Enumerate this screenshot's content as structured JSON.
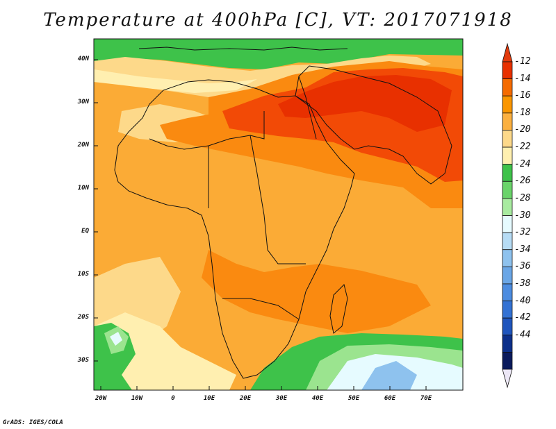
{
  "title": "Temperature at 400hPa [C], VT: 2017071918",
  "credit": "GrADS: IGES/COLA",
  "map": {
    "lat_ticks": [
      "40N",
      "30N",
      "20N",
      "10N",
      "EQ",
      "10S",
      "20S",
      "30S"
    ],
    "lon_ticks": [
      "20W",
      "10W",
      "0",
      "10E",
      "20E",
      "30E",
      "40E",
      "50E",
      "60E",
      "70E"
    ]
  },
  "colorbar": {
    "levels": [
      "-12",
      "-14",
      "-16",
      "-18",
      "-20",
      "-22",
      "-24",
      "-26",
      "-28",
      "-30",
      "-32",
      "-34",
      "-36",
      "-38",
      "-40",
      "-42",
      "-44"
    ],
    "colors": [
      "#e83000",
      "#f56b00",
      "#fa9600",
      "#fbb040",
      "#fdd98a",
      "#fff0b0",
      "#3ec24a",
      "#6ad46a",
      "#a8eba0",
      "#e6fbff",
      "#b6dcf5",
      "#8ec2ee",
      "#6aa6e6",
      "#4c8ce0",
      "#3372d4",
      "#1f55bd",
      "#0c2f8a",
      "#0a1a5c"
    ],
    "arrow_top": "#e23a0c",
    "arrow_bottom": "#ece7f6"
  },
  "field_colors": {
    "hot": "#f24a06",
    "warm": "#fa8a10",
    "mid": "#fbab36",
    "cool": "#fdd98a",
    "pale": "#ffefb0",
    "green": "#3ec24a",
    "lightgreen": "#9be48f",
    "cyan": "#e6fbff",
    "blue": "#8ec2ee"
  }
}
